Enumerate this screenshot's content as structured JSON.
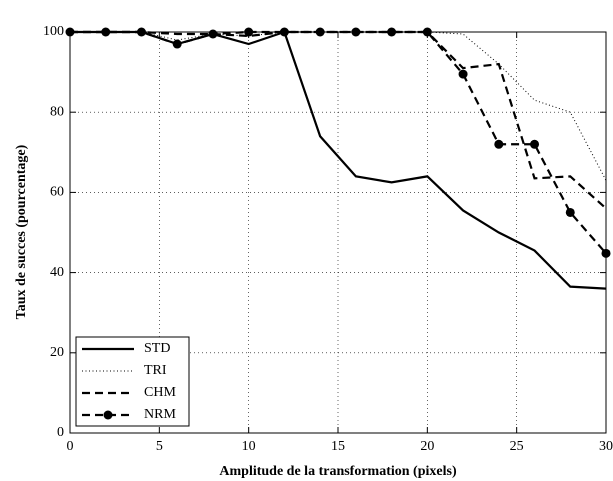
{
  "chart_data": {
    "type": "line",
    "x_label": "Amplitude de la transformation (pixels)",
    "y_label": "Taux de succes (pourcentage)",
    "x": [
      0,
      2,
      4,
      6,
      8,
      10,
      12,
      14,
      16,
      18,
      20,
      22,
      24,
      26,
      28,
      30
    ],
    "series": [
      {
        "name": "STD",
        "color": "#000000",
        "style": "solid",
        "values": [
          100,
          100,
          100,
          97,
          99.5,
          97,
          100,
          74,
          64,
          62.5,
          64,
          55.5,
          50,
          45.5,
          36.5,
          36
        ]
      },
      {
        "name": "TRI",
        "color": "#000000",
        "style": "dotted",
        "values": [
          100,
          100,
          100,
          98,
          99.5,
          99,
          100,
          100,
          100,
          100,
          100,
          99.5,
          92,
          83,
          80,
          63
        ]
      },
      {
        "name": "CHM",
        "color": "#000000",
        "style": "dashed",
        "values": [
          100,
          100,
          100,
          99.5,
          99.5,
          99,
          100,
          100,
          100,
          100,
          100,
          91,
          92,
          63.5,
          64,
          56
        ]
      },
      {
        "name": "NRM",
        "color": "#000000",
        "style": "dashed",
        "marker": "circle",
        "values": [
          100,
          100,
          100,
          97,
          99.5,
          100,
          100,
          100,
          100,
          100,
          100,
          89.5,
          72,
          72,
          55,
          44.8
        ]
      }
    ],
    "xlim": [
      0,
      30
    ],
    "xticks": [
      0,
      5,
      10,
      15,
      20,
      25,
      30
    ],
    "ylim": [
      0,
      100
    ],
    "yticks": [
      0,
      20,
      40,
      60,
      80,
      100
    ],
    "grid": true,
    "legend": "lower-left"
  }
}
